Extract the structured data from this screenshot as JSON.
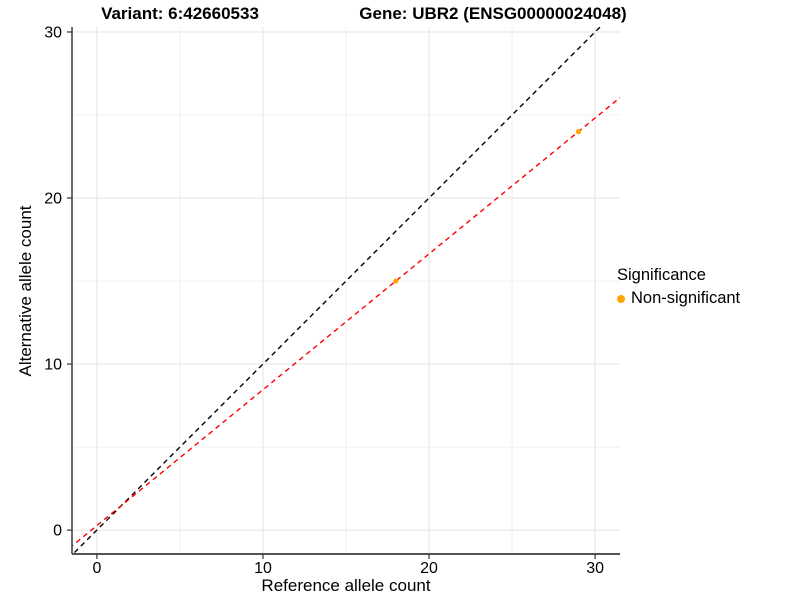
{
  "chart_data": {
    "type": "scatter",
    "titles": {
      "left": "Variant: 6:42660533",
      "right": "Gene: UBR2 (ENSG00000024048)"
    },
    "xlabel": "Reference allele count",
    "ylabel": "Alternative allele count",
    "axes": {
      "xlim": [
        -1.5,
        31.5
      ],
      "ylim": [
        -1.44,
        30.3
      ],
      "x_tick_values": [
        0,
        10,
        20,
        30
      ],
      "y_tick_values": [
        0,
        10,
        20,
        30
      ],
      "x_tick_labels": [
        "0",
        "10",
        "20",
        "30"
      ],
      "y_tick_labels": [
        "0",
        "10",
        "20",
        "30"
      ],
      "x_minor_values": [
        5,
        15,
        25
      ],
      "y_minor_values": [
        5,
        15,
        25
      ],
      "grid": "on",
      "background": "#FFFFFF",
      "major_grid_color": "#E3E3E3",
      "minor_grid_color": "#F0F0F0",
      "axis_line_color": "#3C3C3C"
    },
    "series": [
      {
        "name": "Non-significant",
        "marker": "circle",
        "color": "#FFA500",
        "points": [
          [
            18,
            15
          ],
          [
            29,
            24
          ]
        ]
      }
    ],
    "reference_lines": [
      {
        "name": "identity-line",
        "slope": 1.0,
        "intercept": 0.0,
        "color": "#000000",
        "style": "dashed"
      },
      {
        "name": "fit-line",
        "slope": 0.8182,
        "intercept": 0.2727,
        "color": "#FF0000",
        "style": "dashed"
      }
    ],
    "legend": {
      "title": "Significance",
      "position": "right",
      "items": [
        {
          "label": "Non-significant",
          "color": "#FFA500"
        }
      ]
    }
  }
}
